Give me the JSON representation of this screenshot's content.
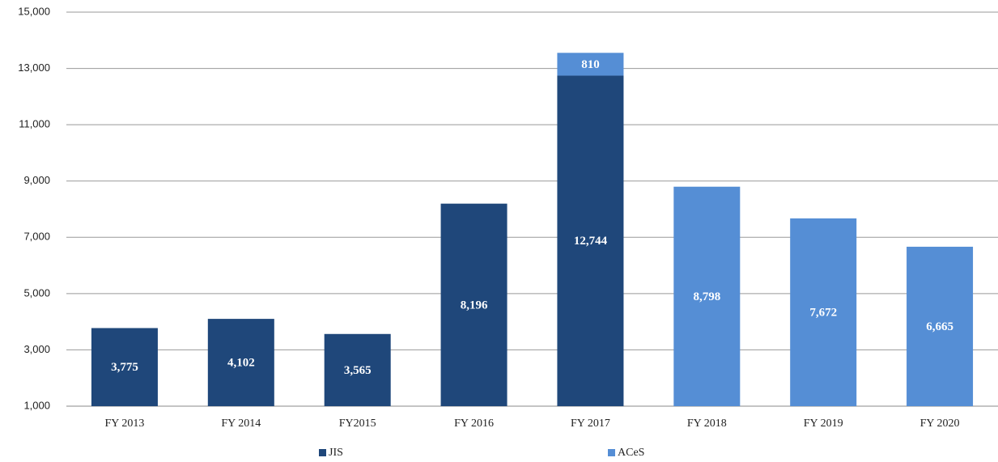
{
  "chart_data": {
    "type": "bar",
    "stacked": true,
    "categories": [
      "FY 2013",
      "FY 2014",
      "FY2015",
      "FY 2016",
      "FY 2017",
      "FY 2018",
      "FY 2019",
      "FY 2020"
    ],
    "series": [
      {
        "name": "JIS",
        "color": "#1f477a",
        "values": [
          3775,
          4102,
          3565,
          8196,
          12744,
          null,
          null,
          null
        ],
        "value_labels": [
          "3,775",
          "4,102",
          "3,565",
          "8,196",
          "12,744",
          null,
          null,
          null
        ]
      },
      {
        "name": "ACeS",
        "color": "#558ed5",
        "values": [
          null,
          null,
          null,
          null,
          810,
          8798,
          7672,
          6665
        ],
        "value_labels": [
          null,
          null,
          null,
          null,
          "810",
          "8,798",
          "7,672",
          "6,665"
        ]
      }
    ],
    "ylim": [
      1000,
      15000
    ],
    "yticks": [
      {
        "value": 1000,
        "label": "1,000"
      },
      {
        "value": 3000,
        "label": "3,000"
      },
      {
        "value": 5000,
        "label": "5,000"
      },
      {
        "value": 7000,
        "label": "7,000"
      },
      {
        "value": 9000,
        "label": "9,000"
      },
      {
        "value": 11000,
        "label": "11,000"
      },
      {
        "value": 13000,
        "label": "13,000"
      },
      {
        "value": 15000,
        "label": "15,000"
      }
    ],
    "grid": true,
    "legend": "bottom"
  }
}
